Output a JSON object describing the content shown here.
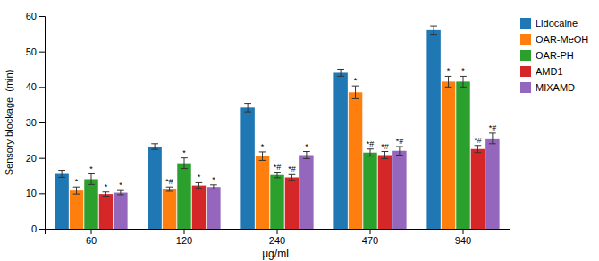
{
  "chart_data": {
    "type": "bar",
    "categories": [
      "60",
      "120",
      "240",
      "470",
      "940"
    ],
    "series": [
      {
        "name": "Lidocaine",
        "values": [
          15.5,
          23.2,
          34.2,
          44.0,
          56.0
        ],
        "errors": [
          1.0,
          0.8,
          1.2,
          1.0,
          1.2
        ]
      },
      {
        "name": "OAR-MeOH",
        "values": [
          10.8,
          11.2,
          20.5,
          38.5,
          41.5
        ],
        "errors": [
          1.0,
          0.6,
          1.2,
          1.8,
          1.5
        ],
        "annotations": [
          "*",
          "*#",
          "*",
          "*",
          "*"
        ]
      },
      {
        "name": "OAR-PH",
        "values": [
          14.0,
          18.5,
          15.2,
          21.5,
          41.5
        ],
        "errors": [
          1.5,
          1.5,
          0.8,
          1.0,
          1.5
        ],
        "annotations": [
          "*",
          "*",
          "*#",
          "*#",
          "*"
        ]
      },
      {
        "name": "AMD1",
        "values": [
          9.8,
          12.2,
          14.5,
          20.8,
          22.5
        ],
        "errors": [
          0.6,
          0.8,
          0.8,
          1.0,
          1.0
        ],
        "annotations": [
          "*",
          "*",
          "*#",
          "*#",
          "*#"
        ]
      },
      {
        "name": "MIXAMD",
        "values": [
          10.2,
          11.8,
          20.8,
          22.0,
          25.5
        ],
        "errors": [
          0.6,
          0.6,
          1.0,
          1.2,
          1.5
        ],
        "annotations": [
          "*",
          "*",
          "*",
          "*#",
          "*#"
        ]
      }
    ],
    "xlabel": "μg/mL",
    "ylabel": "Sensory blockage  (min)",
    "ylim": [
      0,
      60
    ],
    "yticks": [
      0,
      10,
      20,
      30,
      40,
      50,
      60
    ],
    "grid": false,
    "legend": "right"
  }
}
